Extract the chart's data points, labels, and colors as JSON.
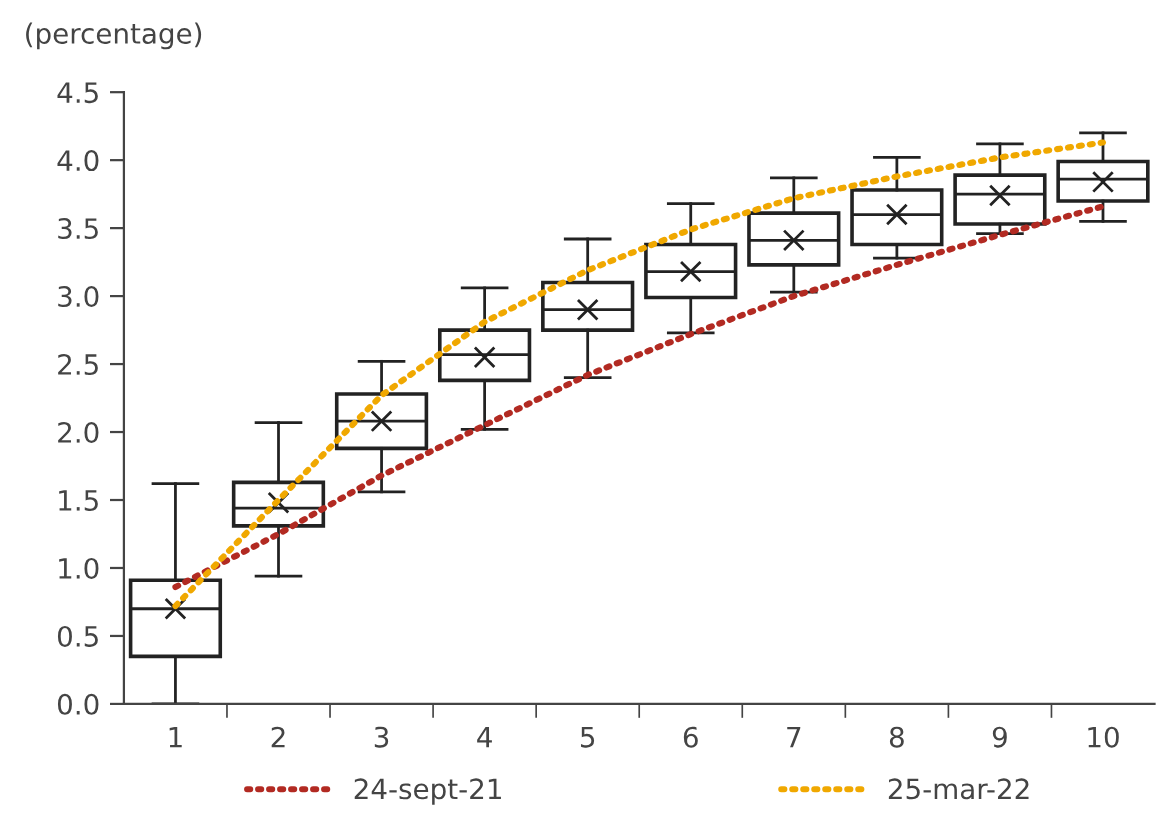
{
  "chart_data": {
    "type": "box",
    "ylabel": "(percentage)",
    "categories": [
      "1",
      "2",
      "3",
      "4",
      "5",
      "6",
      "7",
      "8",
      "9",
      "10"
    ],
    "boxes": [
      {
        "low": 0.0,
        "q1": 0.35,
        "median": 0.7,
        "q3": 0.91,
        "high": 1.62,
        "mean": 0.7
      },
      {
        "low": 0.94,
        "q1": 1.31,
        "median": 1.44,
        "q3": 1.63,
        "high": 2.07,
        "mean": 1.48
      },
      {
        "low": 1.56,
        "q1": 1.88,
        "median": 2.08,
        "q3": 2.28,
        "high": 2.52,
        "mean": 2.08
      },
      {
        "low": 2.02,
        "q1": 2.38,
        "median": 2.57,
        "q3": 2.75,
        "high": 3.06,
        "mean": 2.55
      },
      {
        "low": 2.4,
        "q1": 2.75,
        "median": 2.9,
        "q3": 3.1,
        "high": 3.42,
        "mean": 2.9
      },
      {
        "low": 2.73,
        "q1": 2.99,
        "median": 3.18,
        "q3": 3.38,
        "high": 3.68,
        "mean": 3.18
      },
      {
        "low": 3.03,
        "q1": 3.23,
        "median": 3.41,
        "q3": 3.61,
        "high": 3.87,
        "mean": 3.41
      },
      {
        "low": 3.28,
        "q1": 3.38,
        "median": 3.6,
        "q3": 3.78,
        "high": 4.02,
        "mean": 3.6
      },
      {
        "low": 3.46,
        "q1": 3.53,
        "median": 3.75,
        "q3": 3.89,
        "high": 4.12,
        "mean": 3.74
      },
      {
        "low": 3.55,
        "q1": 3.7,
        "median": 3.86,
        "q3": 3.99,
        "high": 4.2,
        "mean": 3.84
      }
    ],
    "series": [
      {
        "name": "24-sept-21",
        "type": "line",
        "color": "#b22a22",
        "line_style": "dotted",
        "values": [
          0.86,
          1.25,
          1.68,
          2.05,
          2.42,
          2.72,
          3.0,
          3.23,
          3.45,
          3.66
        ]
      },
      {
        "name": "25-mar-22",
        "type": "line",
        "color": "#f0a800",
        "line_style": "dotted",
        "values": [
          0.72,
          1.5,
          2.27,
          2.81,
          3.19,
          3.49,
          3.72,
          3.88,
          4.02,
          4.13
        ]
      }
    ],
    "ylim": [
      0,
      4.5
    ],
    "yticks": [
      {
        "value": 0,
        "label": "0.0"
      },
      0.5,
      {
        "value": 1,
        "label": "1.0"
      },
      1.5,
      {
        "value": 2,
        "label": "2.0"
      },
      2.5,
      {
        "value": 3,
        "label": "3.0"
      },
      3.5,
      {
        "value": 4,
        "label": "4.0"
      },
      4.5
    ],
    "grid": false,
    "legend": "bottom",
    "marker": "none"
  }
}
